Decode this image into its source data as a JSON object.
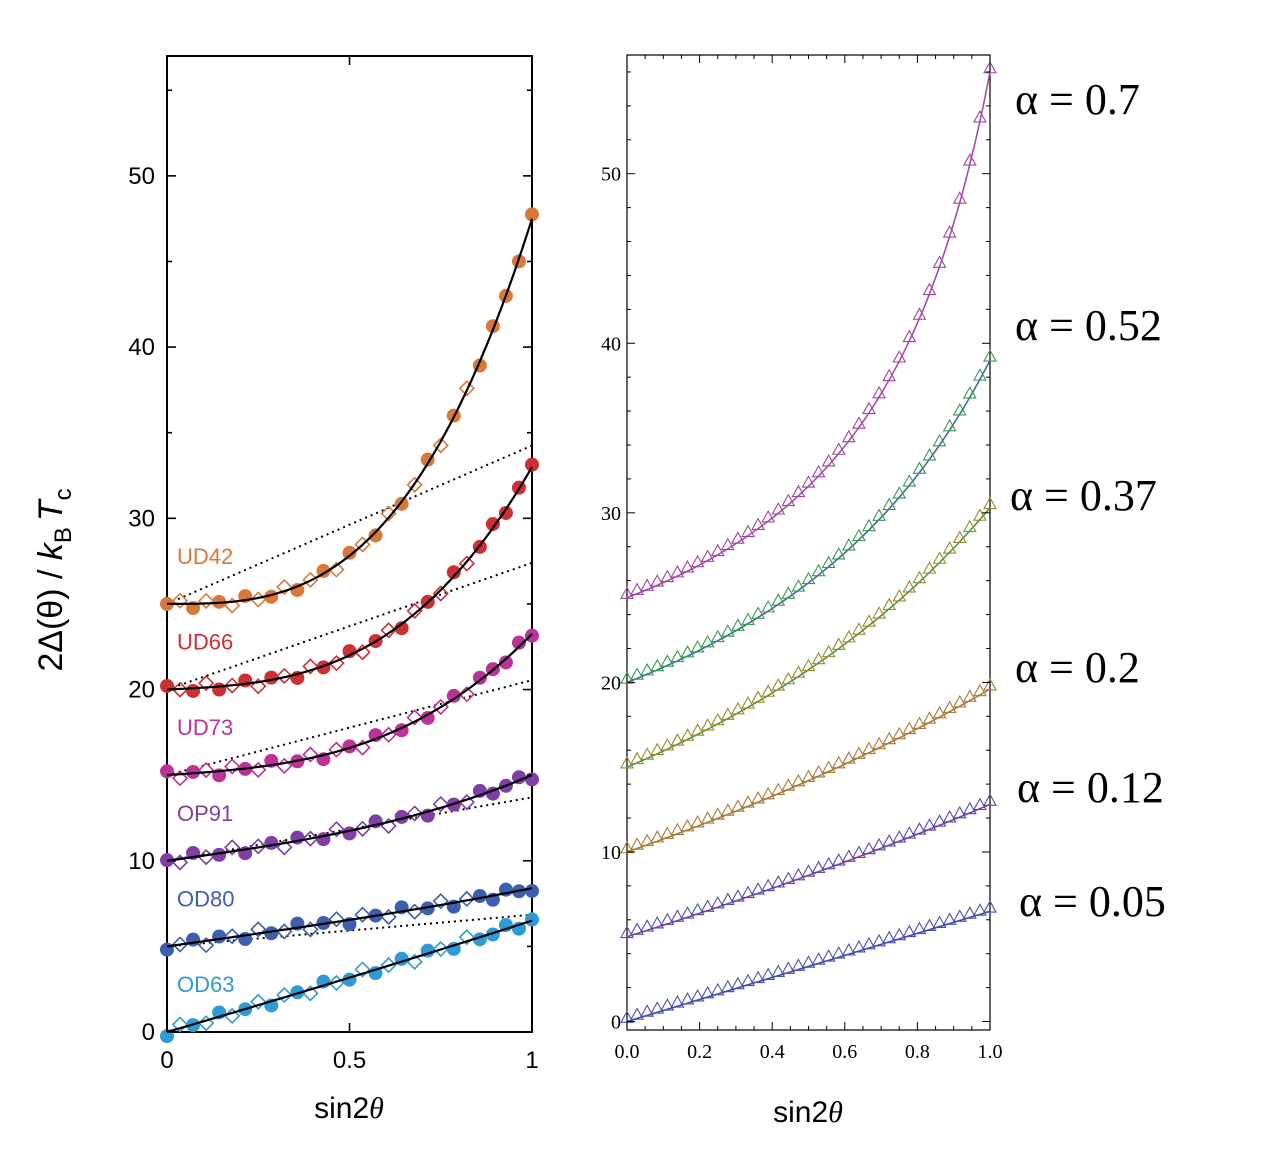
{
  "chart_data": [
    {
      "type": "scatter",
      "panel": "left",
      "xlabel_main": "sin2",
      "xlabel_theta": "θ",
      "ylabel_prefix": "2Δ(θ) / ",
      "ylabel_k": "k",
      "ylabel_B": "B",
      "ylabel_T": "T",
      "ylabel_c": "c",
      "xlim": [
        0,
        1
      ],
      "ylim": [
        0,
        57
      ],
      "xticks": [
        0,
        0.5,
        1
      ],
      "xtick_labels": [
        "0",
        "0.5",
        "1"
      ],
      "yticks": [
        0,
        10,
        20,
        30,
        40,
        50
      ],
      "ytick_labels": [
        "0",
        "10",
        "20",
        "30",
        "40",
        "50"
      ],
      "series": [
        {
          "name": "UD42",
          "color": "#d8793a",
          "offset": 25,
          "a": 0.9,
          "b": 0.0
        },
        {
          "name": "UD66",
          "color": "#cc2f34",
          "offset": 20,
          "a": 0.6,
          "b": 0.05
        },
        {
          "name": "UD73",
          "color": "#bb3399",
          "offset": 15,
          "a": 0.45,
          "b": 0.1
        },
        {
          "name": "OP91",
          "color": "#7f3fa5",
          "offset": 10,
          "a": 0.2,
          "b": 0.3
        },
        {
          "name": "OD80",
          "color": "#3e5fad",
          "offset": 5,
          "a": 0.08,
          "b": 0.6
        },
        {
          "name": "OD63",
          "color": "#2f9bd6",
          "offset": 0,
          "a": 0.03,
          "b": 0.8
        }
      ]
    },
    {
      "type": "scatter",
      "panel": "right",
      "xlabel_main": "sin2",
      "xlabel_theta": "θ",
      "xlim": [
        0,
        1
      ],
      "ylim": [
        -0.5,
        57
      ],
      "xticks": [
        0,
        0.2,
        0.4,
        0.6,
        0.8,
        1.0
      ],
      "xtick_labels": [
        "0.0",
        "0.2",
        "0.4",
        "0.6",
        "0.8",
        "1.0"
      ],
      "yticks": [
        0,
        10,
        20,
        30,
        40,
        50
      ],
      "ytick_labels": [
        "0",
        "10",
        "20",
        "30",
        "40",
        "50"
      ],
      "series": [
        {
          "label": "α = 0.7",
          "alpha": 0.7,
          "offset": 25,
          "line_color": "#a94ca6",
          "marker_color": "#9d46a0"
        },
        {
          "label": "α = 0.52",
          "alpha": 0.52,
          "offset": 20,
          "line_color": "#3c6aa6",
          "marker_color": "#3a9a4a"
        },
        {
          "label": "α = 0.37",
          "alpha": 0.37,
          "offset": 15,
          "line_color": "#4a9a42",
          "marker_color": "#9a8a2a"
        },
        {
          "label": "α = 0.2",
          "alpha": 0.2,
          "offset": 10,
          "line_color": "#a77a35",
          "marker_color": "#a97a3a"
        },
        {
          "label": "α = 0.12",
          "alpha": 0.12,
          "offset": 5,
          "line_color": "#8f3c9a",
          "marker_color": "#4a50b0"
        },
        {
          "label": "α = 0.05",
          "alpha": 0.05,
          "offset": 0,
          "line_color": "#3c4ca8",
          "marker_color": "#4a50b0"
        }
      ]
    }
  ]
}
